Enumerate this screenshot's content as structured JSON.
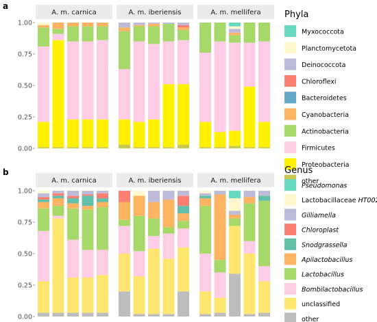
{
  "colors": {
    "Myxococcota": "#66D9C0",
    "Planctomycetota": "#FFF8CC",
    "Deinococcota": "#BEBADA",
    "Chloroflexi": "#FB8072",
    "Bacteroidetes": "#62A8C8",
    "Cyanobacteria": "#FDB462",
    "Actinobacteria": "#A6D96A",
    "Firmicutes": "#FCCDE5",
    "Proteobacteria": "#FFF100",
    "Pseudomonas": "#66D9C0",
    "Lactobacillaceae HT002": "#FFF8CC",
    "Gilliamella": "#BEBADA",
    "Chloroplast": "#FB8072",
    "Snodgrassella": "#62C0A8",
    "Apilactobacillus": "#FDB462",
    "Lactobacillus": "#A6D96A",
    "Bombilactobacillus": "#FCCDE5",
    "unclassified": "#FFE66E",
    "other_a": "#C8C84E",
    "other_b": "#BDBDBD",
    "strip_bg": "#EBEBEB"
  },
  "chart_data": [
    {
      "type": "bar",
      "panel": "a",
      "ylim": [
        0,
        1
      ],
      "yticks": [
        "0.00",
        "0.25",
        "0.50",
        "0.75",
        "1.00"
      ],
      "facets": [
        "A. m. carnica",
        "A. m. iberiensis",
        "A. m. mellifera"
      ],
      "legend_title": "Phyla",
      "legend": [
        "Myxococcota",
        "Planctomycetota",
        "Deinococcota",
        "Chloroflexi",
        "Bacteroidetes",
        "Cyanobacteria",
        "Actinobacteria",
        "Firmicutes",
        "Proteobacteria",
        "other"
      ],
      "stack_order": [
        "other",
        "Proteobacteria",
        "Firmicutes",
        "Actinobacteria",
        "Cyanobacteria",
        "Bacteroidetes",
        "Chloroflexi",
        "Deinococcota",
        "Planctomycetota",
        "Myxococcota"
      ],
      "bars": [
        {
          "facet": 0,
          "values": {
            "other": 0.01,
            "Proteobacteria": 0.2,
            "Firmicutes": 0.6,
            "Actinobacteria": 0.15,
            "Cyanobacteria": 0.02,
            "Bacteroidetes": 0.0,
            "Chloroflexi": 0.0,
            "Deinococcota": 0.0,
            "Planctomycetota": 0.02,
            "Myxococcota": 0.0
          }
        },
        {
          "facet": 0,
          "values": {
            "other": 0.01,
            "Proteobacteria": 0.85,
            "Firmicutes": 0.05,
            "Actinobacteria": 0.04,
            "Cyanobacteria": 0.05,
            "Bacteroidetes": 0.0,
            "Chloroflexi": 0.0,
            "Deinococcota": 0.0,
            "Planctomycetota": 0.0,
            "Myxococcota": 0.0
          }
        },
        {
          "facet": 0,
          "values": {
            "other": 0.01,
            "Proteobacteria": 0.22,
            "Firmicutes": 0.62,
            "Actinobacteria": 0.12,
            "Cyanobacteria": 0.03,
            "Bacteroidetes": 0.0,
            "Chloroflexi": 0.0,
            "Deinococcota": 0.0,
            "Planctomycetota": 0.0,
            "Myxococcota": 0.0
          }
        },
        {
          "facet": 0,
          "values": {
            "other": 0.01,
            "Proteobacteria": 0.22,
            "Firmicutes": 0.62,
            "Actinobacteria": 0.12,
            "Cyanobacteria": 0.03,
            "Bacteroidetes": 0.0,
            "Chloroflexi": 0.0,
            "Deinococcota": 0.0,
            "Planctomycetota": 0.0,
            "Myxococcota": 0.0
          }
        },
        {
          "facet": 0,
          "values": {
            "other": 0.01,
            "Proteobacteria": 0.22,
            "Firmicutes": 0.63,
            "Actinobacteria": 0.11,
            "Cyanobacteria": 0.03,
            "Bacteroidetes": 0.0,
            "Chloroflexi": 0.0,
            "Deinococcota": 0.0,
            "Planctomycetota": 0.0,
            "Myxococcota": 0.0
          }
        },
        {
          "facet": 1,
          "values": {
            "other": 0.03,
            "Proteobacteria": 0.2,
            "Firmicutes": 0.4,
            "Actinobacteria": 0.3,
            "Cyanobacteria": 0.03,
            "Bacteroidetes": 0.0,
            "Chloroflexi": 0.0,
            "Deinococcota": 0.04,
            "Planctomycetota": 0.0,
            "Myxococcota": 0.0
          }
        },
        {
          "facet": 1,
          "values": {
            "other": 0.01,
            "Proteobacteria": 0.2,
            "Firmicutes": 0.64,
            "Actinobacteria": 0.12,
            "Cyanobacteria": 0.01,
            "Bacteroidetes": 0.0,
            "Chloroflexi": 0.0,
            "Deinococcota": 0.02,
            "Planctomycetota": 0.0,
            "Myxococcota": 0.0
          }
        },
        {
          "facet": 1,
          "values": {
            "other": 0.01,
            "Proteobacteria": 0.22,
            "Firmicutes": 0.6,
            "Actinobacteria": 0.14,
            "Cyanobacteria": 0.02,
            "Bacteroidetes": 0.0,
            "Chloroflexi": 0.0,
            "Deinococcota": 0.01,
            "Planctomycetota": 0.0,
            "Myxococcota": 0.0
          }
        },
        {
          "facet": 1,
          "values": {
            "other": 0.01,
            "Proteobacteria": 0.5,
            "Firmicutes": 0.34,
            "Actinobacteria": 0.14,
            "Cyanobacteria": 0.0,
            "Bacteroidetes": 0.0,
            "Chloroflexi": 0.0,
            "Deinococcota": 0.01,
            "Planctomycetota": 0.0,
            "Myxococcota": 0.0
          }
        },
        {
          "facet": 1,
          "values": {
            "other": 0.03,
            "Proteobacteria": 0.48,
            "Firmicutes": 0.35,
            "Actinobacteria": 0.08,
            "Cyanobacteria": 0.02,
            "Bacteroidetes": 0.0,
            "Chloroflexi": 0.02,
            "Deinococcota": 0.02,
            "Planctomycetota": 0.0,
            "Myxococcota": 0.0
          }
        },
        {
          "facet": 2,
          "values": {
            "other": 0.01,
            "Proteobacteria": 0.2,
            "Firmicutes": 0.55,
            "Actinobacteria": 0.24,
            "Cyanobacteria": 0.0,
            "Bacteroidetes": 0.0,
            "Chloroflexi": 0.0,
            "Deinococcota": 0.0,
            "Planctomycetota": 0.0,
            "Myxococcota": 0.0
          }
        },
        {
          "facet": 2,
          "values": {
            "other": 0.01,
            "Proteobacteria": 0.12,
            "Firmicutes": 0.72,
            "Actinobacteria": 0.15,
            "Cyanobacteria": 0.0,
            "Bacteroidetes": 0.0,
            "Chloroflexi": 0.0,
            "Deinococcota": 0.0,
            "Planctomycetota": 0.0,
            "Myxococcota": 0.0
          }
        },
        {
          "facet": 2,
          "values": {
            "other": 0.02,
            "Proteobacteria": 0.12,
            "Firmicutes": 0.7,
            "Actinobacteria": 0.06,
            "Cyanobacteria": 0.02,
            "Bacteroidetes": 0.0,
            "Chloroflexi": 0.0,
            "Deinococcota": 0.03,
            "Planctomycetota": 0.02,
            "Myxococcota": 0.03
          }
        },
        {
          "facet": 2,
          "values": {
            "other": 0.01,
            "Proteobacteria": 0.48,
            "Firmicutes": 0.35,
            "Actinobacteria": 0.16,
            "Cyanobacteria": 0.0,
            "Bacteroidetes": 0.0,
            "Chloroflexi": 0.0,
            "Deinococcota": 0.0,
            "Planctomycetota": 0.0,
            "Myxococcota": 0.0
          }
        },
        {
          "facet": 2,
          "values": {
            "other": 0.01,
            "Proteobacteria": 0.2,
            "Firmicutes": 0.64,
            "Actinobacteria": 0.15,
            "Cyanobacteria": 0.0,
            "Bacteroidetes": 0.0,
            "Chloroflexi": 0.0,
            "Deinococcota": 0.0,
            "Planctomycetota": 0.0,
            "Myxococcota": 0.0
          }
        }
      ]
    },
    {
      "type": "bar",
      "panel": "b",
      "ylim": [
        0,
        1
      ],
      "yticks": [
        "0.00",
        "0.25",
        "0.50",
        "0.75",
        "1.00"
      ],
      "facets": [
        "A. m. carnica",
        "A. m. iberiensis",
        "A. m. mellifera"
      ],
      "legend_title": "Genus",
      "legend": [
        "Pseudomonas",
        "Lactobacillaceae HT002",
        "Gilliamella",
        "Chloroplast",
        "Snodgrassella",
        "Apilactobacillus",
        "Lactobacillus",
        "Bombilactobacillus",
        "unclassified",
        "other"
      ],
      "stack_order": [
        "other",
        "unclassified",
        "Bombilactobacillus",
        "Lactobacillus",
        "Apilactobacillus",
        "Snodgrassella",
        "Chloroplast",
        "Gilliamella",
        "Lactobacillaceae HT002",
        "Pseudomonas"
      ],
      "bars": [
        {
          "facet": 0,
          "values": {
            "other": 0.03,
            "unclassified": 0.25,
            "Bombilactobacillus": 0.4,
            "Lactobacillus": 0.18,
            "Apilactobacillus": 0.05,
            "Snodgrassella": 0.02,
            "Chloroplast": 0.02,
            "Gilliamella": 0.03,
            "Lactobacillaceae HT002": 0.02,
            "Pseudomonas": 0.0
          }
        },
        {
          "facet": 0,
          "values": {
            "other": 0.03,
            "unclassified": 0.75,
            "Bombilactobacillus": 0.02,
            "Lactobacillus": 0.08,
            "Apilactobacillus": 0.06,
            "Snodgrassella": 0.02,
            "Chloroplast": 0.02,
            "Gilliamella": 0.02,
            "Lactobacillaceae HT002": 0.0,
            "Pseudomonas": 0.0
          }
        },
        {
          "facet": 0,
          "values": {
            "other": 0.03,
            "unclassified": 0.28,
            "Bombilactobacillus": 0.3,
            "Lactobacillus": 0.25,
            "Apilactobacillus": 0.04,
            "Snodgrassella": 0.04,
            "Chloroplast": 0.02,
            "Gilliamella": 0.04,
            "Lactobacillaceae HT002": 0.0,
            "Pseudomonas": 0.0
          }
        },
        {
          "facet": 0,
          "values": {
            "other": 0.03,
            "unclassified": 0.28,
            "Bombilactobacillus": 0.22,
            "Lactobacillus": 0.32,
            "Apilactobacillus": 0.03,
            "Snodgrassella": 0.08,
            "Chloroplast": 0.01,
            "Gilliamella": 0.03,
            "Lactobacillaceae HT002": 0.0,
            "Pseudomonas": 0.0
          }
        },
        {
          "facet": 0,
          "values": {
            "other": 0.03,
            "unclassified": 0.3,
            "Bombilactobacillus": 0.2,
            "Lactobacillus": 0.34,
            "Apilactobacillus": 0.04,
            "Snodgrassella": 0.03,
            "Chloroplast": 0.04,
            "Gilliamella": 0.02,
            "Lactobacillaceae HT002": 0.0,
            "Pseudomonas": 0.0
          }
        },
        {
          "facet": 1,
          "values": {
            "other": 0.2,
            "unclassified": 0.3,
            "Bombilactobacillus": 0.22,
            "Lactobacillus": 0.05,
            "Apilactobacillus": 0.14,
            "Snodgrassella": 0.0,
            "Chloroplast": 0.09,
            "Gilliamella": 0.0,
            "Lactobacillaceae HT002": 0.0,
            "Pseudomonas": 0.0
          }
        },
        {
          "facet": 1,
          "values": {
            "other": 0.02,
            "unclassified": 0.3,
            "Bombilactobacillus": 0.2,
            "Lactobacillus": 0.28,
            "Apilactobacillus": 0.16,
            "Snodgrassella": 0.0,
            "Chloroplast": 0.0,
            "Gilliamella": 0.0,
            "Lactobacillaceae HT002": 0.04,
            "Pseudomonas": 0.0
          }
        },
        {
          "facet": 1,
          "values": {
            "other": 0.02,
            "unclassified": 0.52,
            "Bombilactobacillus": 0.1,
            "Lactobacillus": 0.14,
            "Apilactobacillus": 0.13,
            "Snodgrassella": 0.0,
            "Chloroplast": 0.0,
            "Gilliamella": 0.09,
            "Lactobacillaceae HT002": 0.0,
            "Pseudomonas": 0.0
          }
        },
        {
          "facet": 1,
          "values": {
            "other": 0.02,
            "unclassified": 0.44,
            "Bombilactobacillus": 0.2,
            "Lactobacillus": 0.05,
            "Apilactobacillus": 0.22,
            "Snodgrassella": 0.0,
            "Chloroplast": 0.0,
            "Gilliamella": 0.07,
            "Lactobacillaceae HT002": 0.0,
            "Pseudomonas": 0.0
          }
        },
        {
          "facet": 1,
          "values": {
            "other": 0.2,
            "unclassified": 0.35,
            "Bombilactobacillus": 0.15,
            "Lactobacillus": 0.06,
            "Apilactobacillus": 0.06,
            "Snodgrassella": 0.06,
            "Chloroplast": 0.08,
            "Gilliamella": 0.04,
            "Lactobacillaceae HT002": 0.0,
            "Pseudomonas": 0.0
          }
        },
        {
          "facet": 2,
          "values": {
            "other": 0.02,
            "unclassified": 0.18,
            "Bombilactobacillus": 0.3,
            "Lactobacillus": 0.38,
            "Apilactobacillus": 0.06,
            "Snodgrassella": 0.02,
            "Chloroplast": 0.0,
            "Gilliamella": 0.02,
            "Lactobacillaceae HT002": 0.02,
            "Pseudomonas": 0.0
          }
        },
        {
          "facet": 2,
          "values": {
            "other": 0.03,
            "unclassified": 0.12,
            "Bombilactobacillus": 0.2,
            "Lactobacillus": 0.1,
            "Apilactobacillus": 0.52,
            "Snodgrassella": 0.0,
            "Chloroplast": 0.0,
            "Gilliamella": 0.03,
            "Lactobacillaceae HT002": 0.0,
            "Pseudomonas": 0.0
          }
        },
        {
          "facet": 2,
          "values": {
            "other": 0.34,
            "unclassified": 0.38,
            "Bombilactobacillus": 0.0,
            "Lactobacillus": 0.06,
            "Apilactobacillus": 0.03,
            "Snodgrassella": 0.0,
            "Chloroplast": 0.0,
            "Gilliamella": 0.03,
            "Lactobacillaceae HT002": 0.1,
            "Pseudomonas": 0.06
          }
        },
        {
          "facet": 2,
          "values": {
            "other": 0.02,
            "unclassified": 0.48,
            "Bombilactobacillus": 0.1,
            "Lactobacillus": 0.3,
            "Apilactobacillus": 0.05,
            "Snodgrassella": 0.0,
            "Chloroplast": 0.0,
            "Gilliamella": 0.05,
            "Lactobacillaceae HT002": 0.0,
            "Pseudomonas": 0.0
          }
        },
        {
          "facet": 2,
          "values": {
            "other": 0.03,
            "unclassified": 0.25,
            "Bombilactobacillus": 0.12,
            "Lactobacillus": 0.52,
            "Apilactobacillus": 0.0,
            "Snodgrassella": 0.04,
            "Chloroplast": 0.0,
            "Gilliamella": 0.04,
            "Lactobacillaceae HT002": 0.0,
            "Pseudomonas": 0.0
          }
        }
      ]
    }
  ]
}
